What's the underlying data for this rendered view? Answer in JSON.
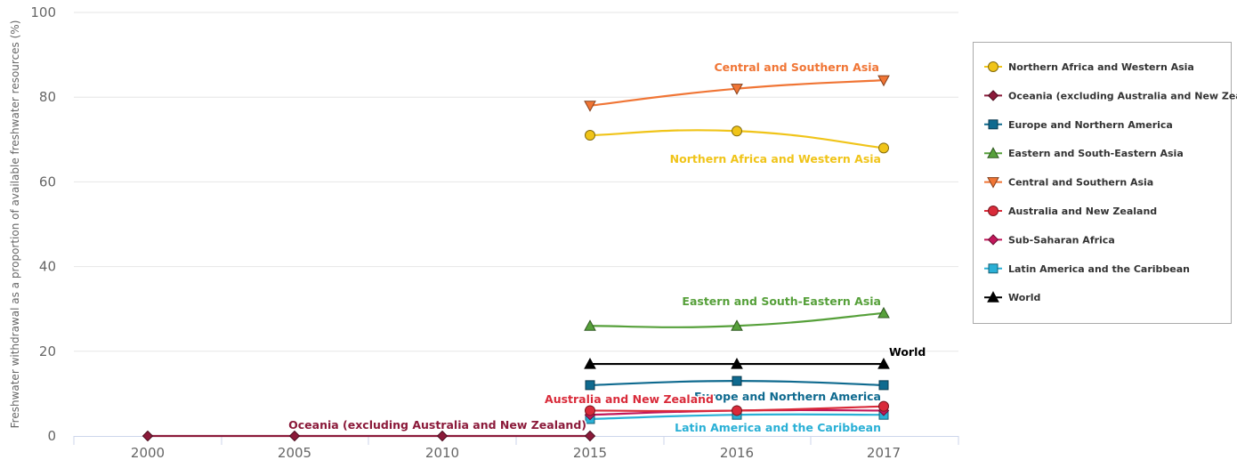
{
  "chart_data": {
    "type": "line",
    "ylabel": "Freshwater withdrawal as a proportion of available freshwater resources (%)",
    "ylim": [
      0,
      100
    ],
    "yticks": [
      "0",
      "20",
      "40",
      "60",
      "80",
      "100"
    ],
    "xticks": [
      "2000",
      "2005",
      "2010",
      "2015",
      "2016",
      "2017"
    ],
    "legend_position": "right",
    "series": [
      {
        "name": "Northern Africa and Western Asia",
        "color": "#f0c419",
        "marker": "circle",
        "x": [
          "2015",
          "2016",
          "2017"
        ],
        "values": [
          71,
          72,
          68
        ],
        "label": "Northern Africa and Western Asia"
      },
      {
        "name": "Oceania (excluding Australia and New Zealand)",
        "color": "#8b1a3a",
        "marker": "diamond",
        "x": [
          "2000",
          "2005",
          "2010",
          "2015"
        ],
        "values": [
          0,
          0,
          0,
          0
        ],
        "label": "Oceania (excluding Australia and New Zealand)"
      },
      {
        "name": "Europe and Northern America",
        "color": "#0f6a8f",
        "marker": "square",
        "x": [
          "2015",
          "2016",
          "2017"
        ],
        "values": [
          12,
          13,
          12
        ],
        "label": "Europe and Northern America"
      },
      {
        "name": "Eastern and South-Eastern Asia",
        "color": "#56a03a",
        "marker": "triangle-up",
        "x": [
          "2015",
          "2016",
          "2017"
        ],
        "values": [
          26,
          26,
          29
        ],
        "label": "Eastern and South-Eastern Asia"
      },
      {
        "name": "Central and Southern Asia",
        "color": "#f07535",
        "marker": "triangle-down",
        "x": [
          "2015",
          "2016",
          "2017"
        ],
        "values": [
          78,
          82,
          84
        ],
        "label": "Central and Southern Asia"
      },
      {
        "name": "Australia and New Zealand",
        "color": "#d92b3a",
        "marker": "circle",
        "x": [
          "2015",
          "2016",
          "2017"
        ],
        "values": [
          6,
          6,
          7
        ],
        "label": "Australia and New Zealand"
      },
      {
        "name": "Sub-Saharan Africa",
        "color": "#c2185b",
        "marker": "diamond",
        "x": [
          "2015",
          "2016",
          "2017"
        ],
        "values": [
          5,
          6,
          6
        ],
        "label": ""
      },
      {
        "name": "Latin America and the Caribbean",
        "color": "#2ab0d6",
        "marker": "square",
        "x": [
          "2015",
          "2016",
          "2017"
        ],
        "values": [
          4,
          5,
          5
        ],
        "label": "Latin America and the Caribbean"
      },
      {
        "name": "World",
        "color": "#000000",
        "marker": "triangle-up",
        "x": [
          "2015",
          "2016",
          "2017"
        ],
        "values": [
          17,
          17,
          17
        ],
        "label": "World"
      }
    ]
  }
}
